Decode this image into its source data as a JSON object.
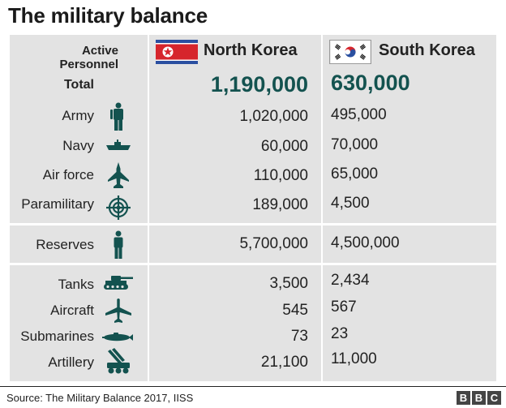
{
  "title": "The military balance",
  "accent_color": "#13524f",
  "header": {
    "active_personnel": "Active Personnel",
    "north_korea": "North Korea",
    "south_korea": "South Korea"
  },
  "total": {
    "label": "Total",
    "nk": "1,190,000",
    "sk": "630,000"
  },
  "rows": [
    {
      "label": "Army",
      "icon": "soldier-icon",
      "nk": "1,020,000",
      "sk": "495,000"
    },
    {
      "label": "Navy",
      "icon": "ship-icon",
      "nk": "60,000",
      "sk": "70,000"
    },
    {
      "label": "Air force",
      "icon": "fighter-jet-icon",
      "nk": "110,000",
      "sk": "65,000"
    },
    {
      "label": "Paramilitary",
      "icon": "crosshair-icon",
      "nk": "189,000",
      "sk": "4,500"
    },
    {
      "label": "Reserves",
      "icon": "person-icon",
      "nk": "5,700,000",
      "sk": "4,500,000"
    },
    {
      "label": "Tanks",
      "icon": "tank-icon",
      "nk": "3,500",
      "sk": "2,434"
    },
    {
      "label": "Aircraft",
      "icon": "plane-icon",
      "nk": "545",
      "sk": "567"
    },
    {
      "label": "Submarines",
      "icon": "submarine-icon",
      "nk": "73",
      "sk": "23"
    },
    {
      "label": "Artillery",
      "icon": "artillery-icon",
      "nk": "21,100",
      "sk": "11,000"
    }
  ],
  "source": "Source: The Military Balance 2017, IISS",
  "logo": "BBC"
}
